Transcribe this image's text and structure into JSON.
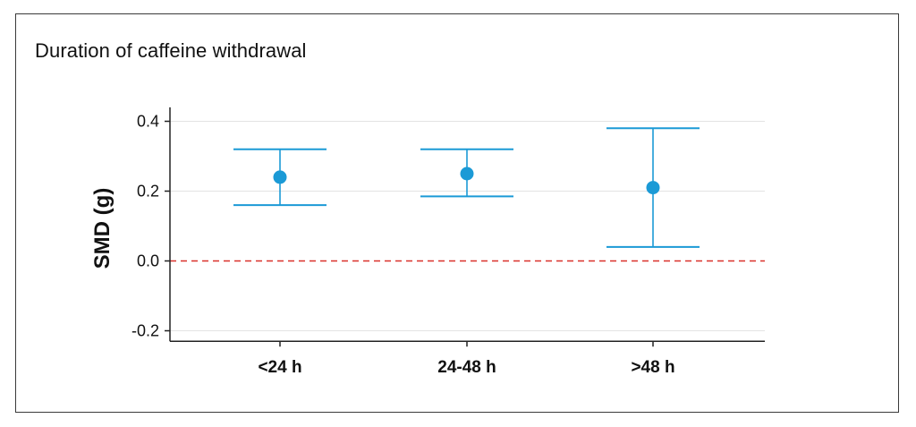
{
  "chart_data": {
    "type": "scatter",
    "title": "Duration of caffeine withdrawal",
    "xlabel": "",
    "ylabel": "SMD (g)",
    "categories": [
      "<24 h",
      "24-48 h",
      ">48 h"
    ],
    "points": [
      {
        "category": "<24 h",
        "value": 0.24,
        "lower": 0.16,
        "upper": 0.32
      },
      {
        "category": "24-48 h",
        "value": 0.25,
        "lower": 0.185,
        "upper": 0.32
      },
      {
        "category": ">48 h",
        "value": 0.21,
        "lower": 0.04,
        "upper": 0.38
      }
    ],
    "ylim": [
      -0.23,
      0.44
    ],
    "yticks": [
      0.4,
      0.2,
      0.0,
      -0.2
    ],
    "ytick_labels": [
      "0.4",
      "0.2",
      "0.0",
      "-0.2"
    ],
    "reference_line": {
      "y": 0.0,
      "style": "dashed",
      "color": "#d9302a"
    },
    "grid": true,
    "colors": {
      "marker": "#1b9ad6",
      "errorbar": "#1b9ad6",
      "grid": "#e3e3e3",
      "axis": "#222222"
    }
  }
}
